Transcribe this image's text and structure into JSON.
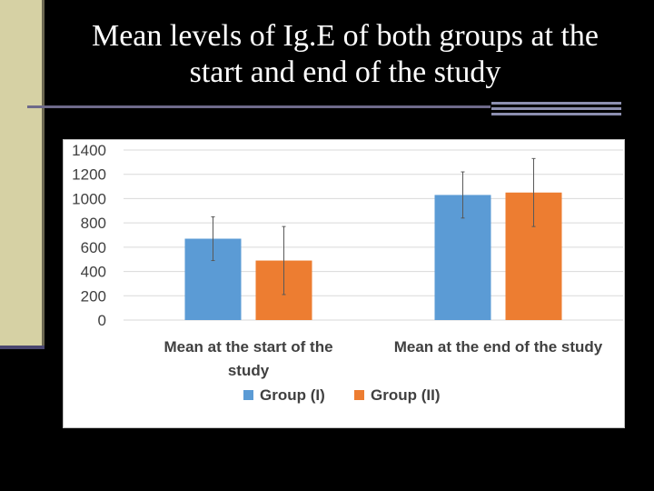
{
  "slide": {
    "title_lines": [
      "Mean levels of Ig.E of both groups at the",
      "start and end of the study"
    ]
  },
  "chart_data": {
    "type": "bar",
    "categories": [
      [
        "Mean at the start of the",
        "study"
      ],
      [
        "Mean at the end of the study"
      ]
    ],
    "series": [
      {
        "name": "Group (I)",
        "values": [
          670,
          1030
        ],
        "error": [
          180,
          190
        ],
        "color": "#5b9bd5"
      },
      {
        "name": "Group (II)",
        "values": [
          490,
          1050
        ],
        "error": [
          280,
          280
        ],
        "color": "#ed7d31"
      }
    ],
    "ylim": [
      0,
      1400
    ],
    "yticks": [
      0,
      200,
      400,
      600,
      800,
      1000,
      1200,
      1400
    ],
    "grid": true,
    "legend_position": "bottom"
  }
}
